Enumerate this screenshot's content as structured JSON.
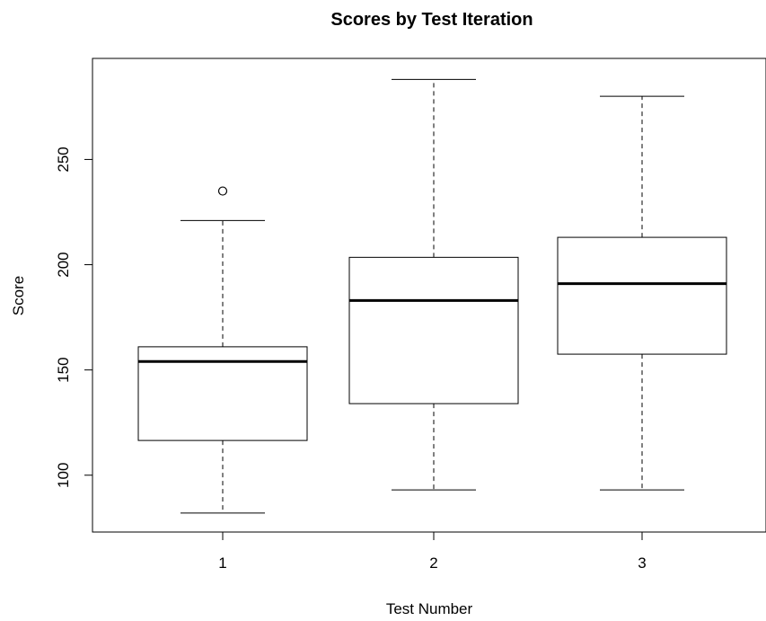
{
  "chart_data": {
    "type": "boxplot",
    "title": "Scores by Test Iteration",
    "xlabel": "Test Number",
    "ylabel": "Score",
    "ylim": [
      73,
      298
    ],
    "yticks": [
      100,
      150,
      200,
      250
    ],
    "grid": false,
    "legend": "none",
    "categories": [
      "1",
      "2",
      "3"
    ],
    "boxes": [
      {
        "category": "1",
        "whisker_low": 82,
        "q1": 116.5,
        "median": 154,
        "q3": 161,
        "whisker_high": 221,
        "outliers": [
          235
        ]
      },
      {
        "category": "2",
        "whisker_low": 93,
        "q1": 134,
        "median": 183,
        "q3": 203.5,
        "whisker_high": 288,
        "outliers": []
      },
      {
        "category": "3",
        "whisker_low": 93,
        "q1": 157.5,
        "median": 191,
        "q3": 213,
        "whisker_high": 280,
        "outliers": []
      }
    ]
  },
  "colors": {
    "stroke": "#000000",
    "background": "#ffffff"
  }
}
